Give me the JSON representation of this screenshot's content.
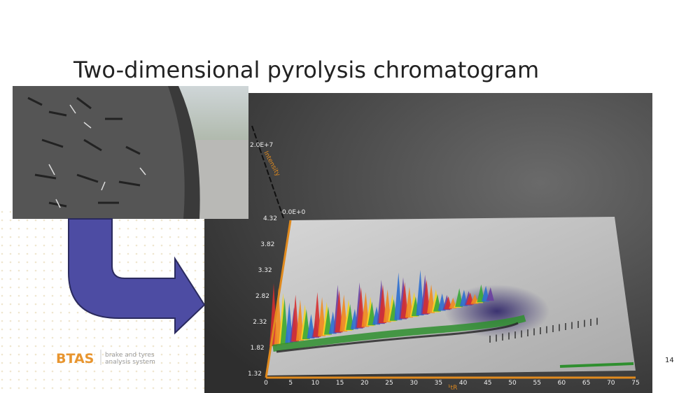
{
  "slide": {
    "title": "Two-dimensional pyrolysis chromatogram",
    "page_number": "14",
    "logo": {
      "mark": "BTAS",
      "line1": "brake and tyres",
      "line2": "analysis system"
    },
    "chromatogram": {
      "intensity_max": "2.0E+7",
      "intensity_min": "0.0E+0",
      "intensity_label": "Intensity",
      "y_ticks": [
        "4.32",
        "3.82",
        "3.32",
        "2.82",
        "2.32",
        "1.82",
        "1.32"
      ],
      "x_ticks": [
        "0",
        "5",
        "10",
        "15",
        "20",
        "25",
        "30",
        "35",
        "40",
        "45",
        "50",
        "55",
        "60",
        "65",
        "70",
        "75"
      ],
      "x_label": "¹tR"
    }
  }
}
